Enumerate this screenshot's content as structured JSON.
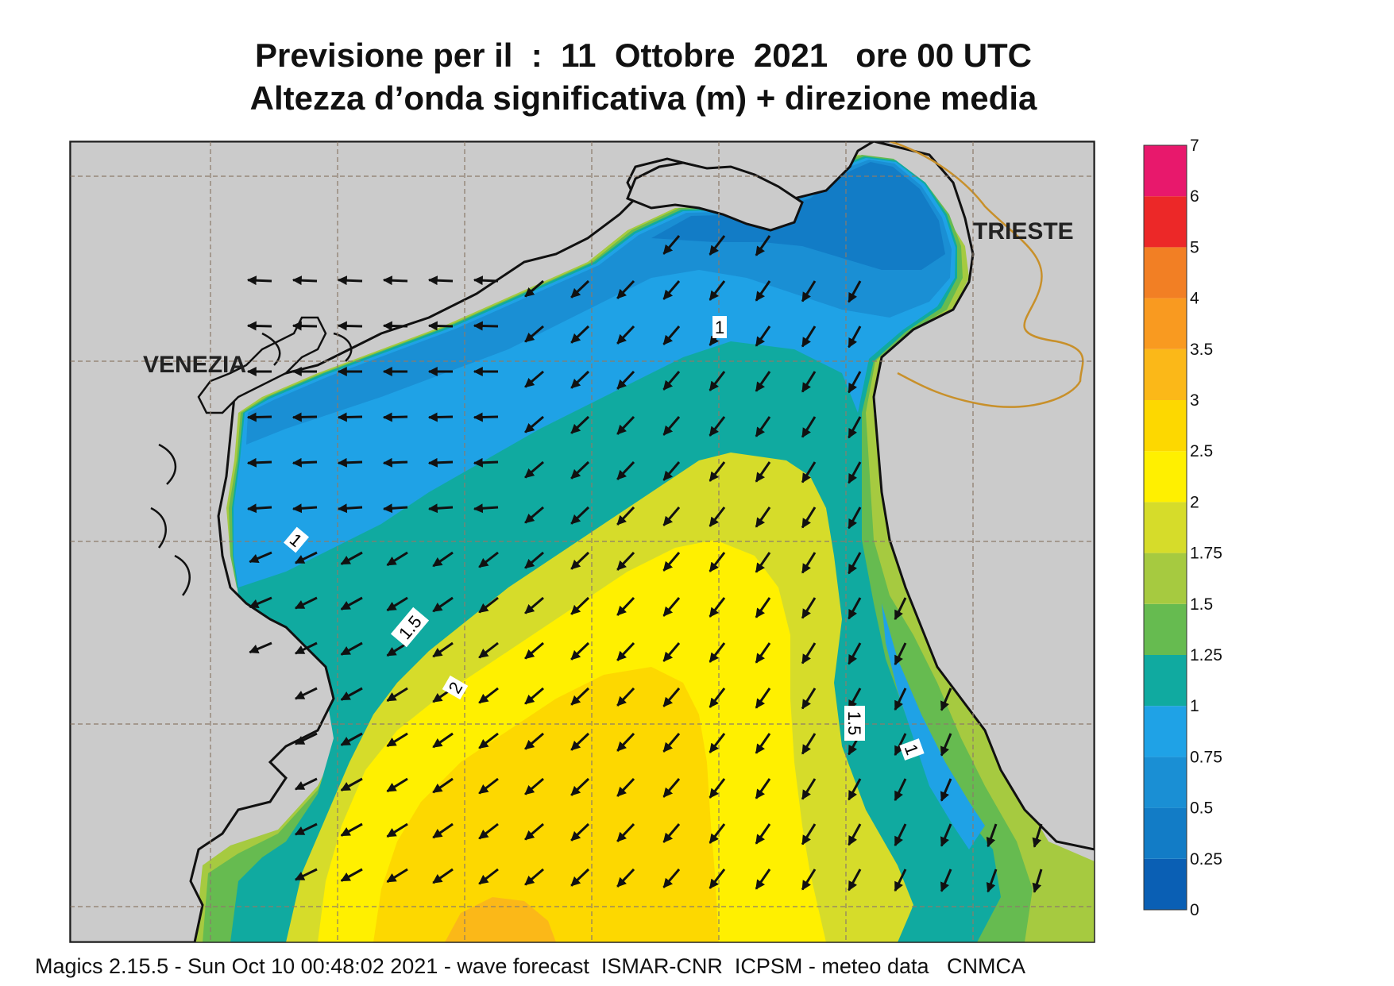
{
  "title": {
    "line1": "Previsione per il  :  11  Ottobre  2021   ore 00 UTC",
    "line2": "Altezza d’onda significativa (m) + direzione media"
  },
  "cities": [
    "VENEZIA",
    "TRIESTE"
  ],
  "contour_labels": [
    "1",
    "1",
    "1.5",
    "2",
    "1.5",
    "1"
  ],
  "legend": {
    "labels": [
      "0",
      "0.25",
      "0.5",
      "0.75",
      "1",
      "1.25",
      "1.5",
      "1.75",
      "2",
      "2.5",
      "3",
      "3.5",
      "4",
      "5",
      "6",
      "7"
    ],
    "colors": [
      "#0a5fb4",
      "#127cc6",
      "#1a8fd4",
      "#1fa2e6",
      "#10aaa0",
      "#66bb50",
      "#a6ca40",
      "#d6dc2a",
      "#fff000",
      "#fdd800",
      "#fbb818",
      "#f99a20",
      "#f27f24",
      "#ec2828",
      "#e8186c"
    ]
  },
  "colors": {
    "land": "#cbcbcb",
    "coast": "#111111",
    "border": "#c8902a",
    "grid": "#8c7b6a",
    "arrow": "#111111"
  },
  "footer": "Magics 2.15.5 - Sun Oct 10 00:48:02 2021 - wave forecast  ISMAR-CNR  ICPSM - meteo data   CNMCA"
}
